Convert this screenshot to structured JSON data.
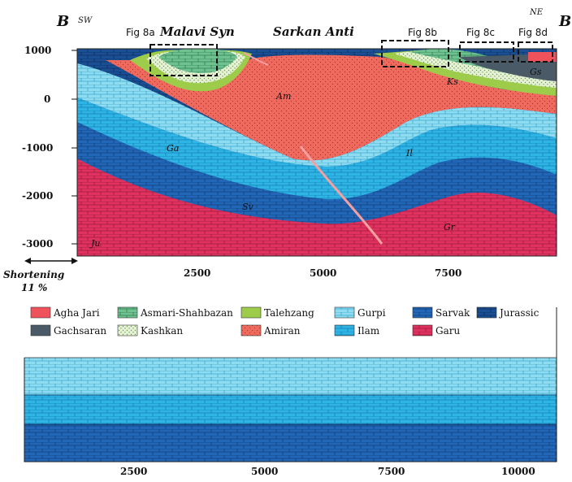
{
  "section_top": {
    "corner_left": "B",
    "corner_right": "B",
    "side_left": "SW",
    "side_right": "NE",
    "title_syncline": "Malavi Syn",
    "title_anticline": "Sarkan Anti",
    "fig_labels": [
      "Fig 8a",
      "Fig 8b",
      "Fig 8c",
      "Fig 8d"
    ],
    "y_ticks": [
      "1000",
      "0",
      "-1000",
      "-2000",
      "-3000"
    ],
    "x_ticks": [
      "2500",
      "5000",
      "7500"
    ],
    "unit_labels": [
      "Am",
      "Ga",
      "Il",
      "Sv",
      "Gr",
      "Ju",
      "Gs",
      "Ks"
    ],
    "shortening_label": "Shortening",
    "shortening_value": "11 %"
  },
  "legend": {
    "items": [
      {
        "label": "Agha Jari",
        "color": "#f0525c"
      },
      {
        "label": "Asmari-Shahbazan",
        "color": "#6fc28f"
      },
      {
        "label": "Talehzang",
        "color": "#9ccc4a"
      },
      {
        "label": "Gurpi",
        "color": "#7fd6ee"
      },
      {
        "label": "Sarvak",
        "color": "#2266b8"
      },
      {
        "label": "Jurassic",
        "color": "#1b5aa0"
      },
      {
        "label": "Gachsaran",
        "color": "#4a5a66"
      },
      {
        "label": "Kashkan",
        "color": "#dfeecf"
      },
      {
        "label": "Amiran",
        "color": "#ef6a5e"
      },
      {
        "label": "Ilam",
        "color": "#2fb4e6"
      },
      {
        "label": "Garu",
        "color": "#e0325f"
      }
    ]
  },
  "section_bottom": {
    "x_ticks": [
      "2500",
      "5000",
      "7500",
      "10000"
    ]
  }
}
